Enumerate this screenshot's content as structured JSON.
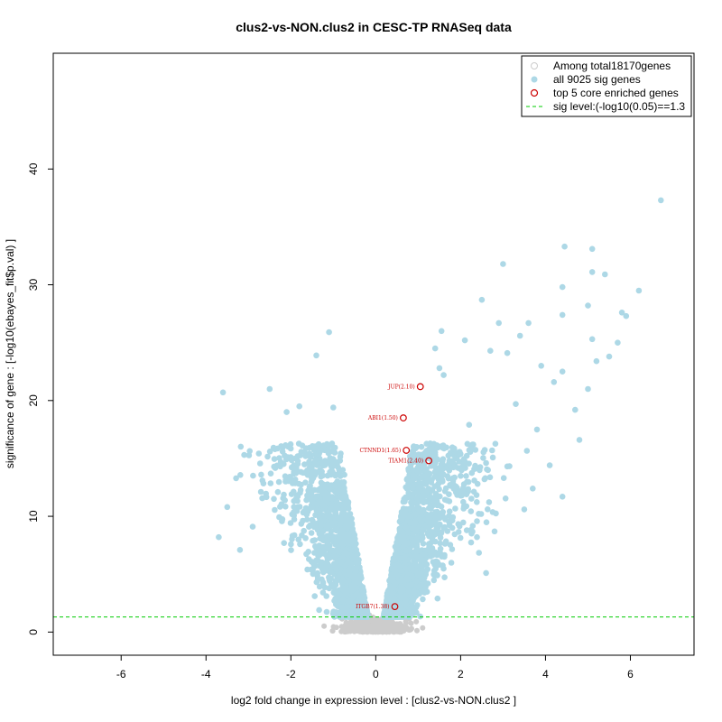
{
  "chart_data": {
    "type": "scatter",
    "title": "clus2-vs-NON.clus2 in CESC-TP RNASeq data",
    "xlabel": "log2 fold change in expression level : [clus2-vs-NON.clus2 ]",
    "ylabel": "significance of gene : [-log10(ebayes_fit$p.val) ]",
    "xlim": [
      -7.6,
      7.5
    ],
    "ylim": [
      -2,
      50
    ],
    "x_ticks": [
      "-6",
      "-4",
      "-2",
      "0",
      "2",
      "4",
      "6"
    ],
    "y_ticks": [
      "0",
      "10",
      "20",
      "30",
      "40"
    ],
    "sig_level": 1.3,
    "colors": {
      "background_genes": "#cccccc",
      "sig_genes": "#add8e6",
      "core_genes": "#cc0000",
      "sig_line": "#00cc00"
    },
    "legend": {
      "position": "top-right",
      "entries": [
        "Among total18170genes",
        "all 9025 sig genes",
        "top 5 core enriched genes",
        "sig level:(-log10(0.05)==1.3"
      ]
    },
    "highlighted_genes": [
      {
        "label": "JUP(2.10)",
        "x": 1.05,
        "y": 21.2
      },
      {
        "label": "ABI1(1.50)",
        "x": 0.65,
        "y": 18.5
      },
      {
        "label": "CTNND1(1.65)",
        "x": 0.72,
        "y": 15.7
      },
      {
        "label": "TIAM1(2.40)",
        "x": 1.25,
        "y": 14.8
      },
      {
        "label": "ITGB7(1.38)",
        "x": 0.45,
        "y": 2.2
      }
    ],
    "sig_genes_sample": [
      {
        "x": 6.72,
        "y": 37.3
      },
      {
        "x": 4.45,
        "y": 33.3
      },
      {
        "x": 5.1,
        "y": 33.1
      },
      {
        "x": 3.0,
        "y": 31.8
      },
      {
        "x": 5.1,
        "y": 31.1
      },
      {
        "x": 5.4,
        "y": 30.9
      },
      {
        "x": 6.2,
        "y": 29.5
      },
      {
        "x": 4.4,
        "y": 29.8
      },
      {
        "x": 2.5,
        "y": 28.7
      },
      {
        "x": 5.0,
        "y": 28.2
      },
      {
        "x": 5.8,
        "y": 27.6
      },
      {
        "x": 5.9,
        "y": 27.3
      },
      {
        "x": 4.4,
        "y": 27.4
      },
      {
        "x": 3.6,
        "y": 26.7
      },
      {
        "x": 2.9,
        "y": 26.7
      },
      {
        "x": 1.55,
        "y": 26.0
      },
      {
        "x": -1.1,
        "y": 25.9
      },
      {
        "x": 3.4,
        "y": 25.6
      },
      {
        "x": 5.1,
        "y": 25.3
      },
      {
        "x": 5.7,
        "y": 25.0
      },
      {
        "x": 2.1,
        "y": 25.2
      },
      {
        "x": -1.4,
        "y": 23.9
      },
      {
        "x": 1.4,
        "y": 24.5
      },
      {
        "x": 2.7,
        "y": 24.3
      },
      {
        "x": 3.1,
        "y": 24.1
      },
      {
        "x": 5.5,
        "y": 23.8
      },
      {
        "x": 1.5,
        "y": 22.8
      },
      {
        "x": 4.4,
        "y": 22.5
      },
      {
        "x": 5.2,
        "y": 23.4
      },
      {
        "x": 1.6,
        "y": 22.2
      },
      {
        "x": 3.9,
        "y": 23.0
      },
      {
        "x": -3.6,
        "y": 20.7
      },
      {
        "x": -2.5,
        "y": 21.0
      },
      {
        "x": 4.7,
        "y": 19.2
      },
      {
        "x": 4.4,
        "y": 11.7
      },
      {
        "x": 4.8,
        "y": 16.6
      },
      {
        "x": -3.7,
        "y": 8.2
      },
      {
        "x": -3.2,
        "y": 7.1
      },
      {
        "x": -3.5,
        "y": 10.8
      },
      {
        "x": -3.1,
        "y": 15.3
      },
      {
        "x": 3.5,
        "y": 10.6
      },
      {
        "x": 4.1,
        "y": 14.4
      },
      {
        "x": 3.7,
        "y": 12.4
      },
      {
        "x": 2.8,
        "y": 8.7
      },
      {
        "x": 2.6,
        "y": 5.1
      },
      {
        "x": 5.0,
        "y": 21.0
      },
      {
        "x": 4.2,
        "y": 21.6
      },
      {
        "x": 3.3,
        "y": 19.7
      },
      {
        "x": 2.2,
        "y": 17.9
      },
      {
        "x": 3.8,
        "y": 17.5
      },
      {
        "x": -2.1,
        "y": 19.0
      },
      {
        "x": -1.8,
        "y": 19.5
      },
      {
        "x": -1.0,
        "y": 19.4
      },
      {
        "x": -2.7,
        "y": 13.6
      },
      {
        "x": -2.4,
        "y": 11.5
      },
      {
        "x": -2.9,
        "y": 9.1
      },
      {
        "x": 2.4,
        "y": 12.8
      }
    ]
  }
}
